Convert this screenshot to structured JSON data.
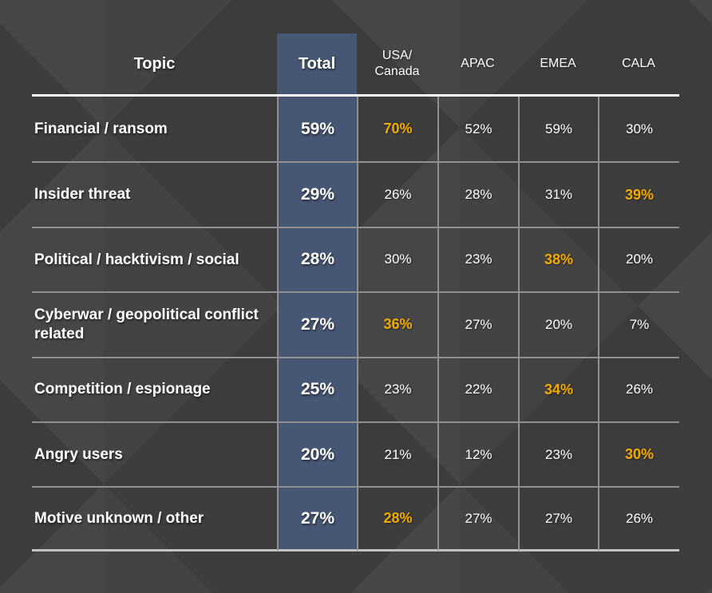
{
  "colors": {
    "background": "#3f3f3f",
    "total_column_bg": "#475672",
    "grid_line": "#909090",
    "header_underline": "#fdfdfd",
    "bottom_line": "#c2c2c2",
    "text": "#ffffff",
    "highlight": "#f2a900"
  },
  "header": {
    "topic": "Topic",
    "total": "Total",
    "regions": [
      "USA/\nCanada",
      "APAC",
      "EMEA",
      "CALA"
    ]
  },
  "chart_data": {
    "type": "table",
    "title": "",
    "columns": [
      "Topic",
      "Total",
      "USA/Canada",
      "APAC",
      "EMEA",
      "CALA"
    ],
    "highlight_meaning": "orange bold value = standout region for that row",
    "rows": [
      {
        "topic": "Financial / ransom",
        "total": "59%",
        "values": [
          {
            "v": "70%",
            "hl": true
          },
          {
            "v": "52%",
            "hl": false
          },
          {
            "v": "59%",
            "hl": false
          },
          {
            "v": "30%",
            "hl": false
          }
        ]
      },
      {
        "topic": "Insider threat",
        "total": "29%",
        "values": [
          {
            "v": "26%",
            "hl": false
          },
          {
            "v": "28%",
            "hl": false
          },
          {
            "v": "31%",
            "hl": false
          },
          {
            "v": "39%",
            "hl": true
          }
        ]
      },
      {
        "topic": "Political / hacktivism / social",
        "total": "28%",
        "values": [
          {
            "v": "30%",
            "hl": false
          },
          {
            "v": "23%",
            "hl": false
          },
          {
            "v": "38%",
            "hl": true
          },
          {
            "v": "20%",
            "hl": false
          }
        ]
      },
      {
        "topic": "Cyberwar / geopolitical conflict related",
        "total": "27%",
        "values": [
          {
            "v": "36%",
            "hl": true
          },
          {
            "v": "27%",
            "hl": false
          },
          {
            "v": "20%",
            "hl": false
          },
          {
            "v": "7%",
            "hl": false
          }
        ]
      },
      {
        "topic": "Competition / espionage",
        "total": "25%",
        "values": [
          {
            "v": "23%",
            "hl": false
          },
          {
            "v": "22%",
            "hl": false
          },
          {
            "v": "34%",
            "hl": true
          },
          {
            "v": "26%",
            "hl": false
          }
        ]
      },
      {
        "topic": "Angry users",
        "total": "20%",
        "values": [
          {
            "v": "21%",
            "hl": false
          },
          {
            "v": "12%",
            "hl": false
          },
          {
            "v": "23%",
            "hl": false
          },
          {
            "v": "30%",
            "hl": true
          }
        ]
      },
      {
        "topic": "Motive unknown / other",
        "total": "27%",
        "values": [
          {
            "v": "28%",
            "hl": true
          },
          {
            "v": "27%",
            "hl": false
          },
          {
            "v": "27%",
            "hl": false
          },
          {
            "v": "26%",
            "hl": false
          }
        ]
      }
    ]
  }
}
